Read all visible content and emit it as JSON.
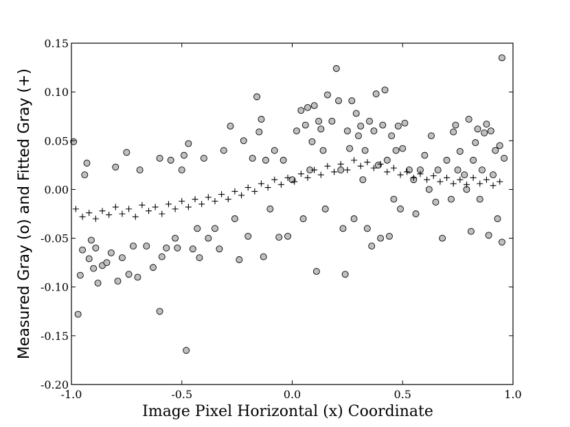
{
  "chart_data": {
    "type": "scatter",
    "title": "",
    "xlabel": "Image Pixel Horizontal (x) Coordinate",
    "ylabel": "Measured Gray (o) and Fitted Gray (+)",
    "xlim": [
      -1.0,
      1.0
    ],
    "ylim": [
      -0.2,
      0.15
    ],
    "xticks": [
      "-1.0",
      "-0.5",
      "0.0",
      "0.5",
      "1.0"
    ],
    "yticks": [
      "0.15",
      "0.10",
      "0.05",
      "0.00",
      "-0.05",
      "-0.10",
      "-0.15",
      "-0.20"
    ],
    "ytick_values": [
      0.15,
      0.1,
      0.05,
      0.0,
      -0.05,
      -0.1,
      -0.15,
      -0.2
    ],
    "xtick_values": [
      -1.0,
      -0.5,
      0.0,
      0.5,
      1.0
    ],
    "grid": false,
    "legend": "none",
    "series": [
      {
        "marker": "circle",
        "color": "#c0c0c0",
        "edge_color": "#000000",
        "points": [
          [
            -0.99,
            0.049
          ],
          [
            -0.97,
            -0.128
          ],
          [
            -0.96,
            -0.088
          ],
          [
            -0.95,
            -0.062
          ],
          [
            -0.94,
            0.015
          ],
          [
            -0.93,
            0.027
          ],
          [
            -0.92,
            -0.071
          ],
          [
            -0.91,
            -0.052
          ],
          [
            -0.9,
            -0.081
          ],
          [
            -0.89,
            -0.06
          ],
          [
            -0.88,
            -0.096
          ],
          [
            -0.86,
            -0.078
          ],
          [
            -0.84,
            -0.075
          ],
          [
            -0.82,
            -0.065
          ],
          [
            -0.8,
            0.023
          ],
          [
            -0.79,
            -0.094
          ],
          [
            -0.77,
            -0.07
          ],
          [
            -0.75,
            0.038
          ],
          [
            -0.74,
            -0.087
          ],
          [
            -0.72,
            -0.058
          ],
          [
            -0.7,
            -0.09
          ],
          [
            -0.69,
            0.02
          ],
          [
            -0.66,
            -0.058
          ],
          [
            -0.63,
            -0.08
          ],
          [
            -0.6,
            0.032
          ],
          [
            -0.6,
            -0.125
          ],
          [
            -0.59,
            -0.069
          ],
          [
            -0.57,
            -0.06
          ],
          [
            -0.55,
            0.03
          ],
          [
            -0.53,
            -0.05
          ],
          [
            -0.52,
            -0.06
          ],
          [
            -0.5,
            0.02
          ],
          [
            -0.49,
            0.035
          ],
          [
            -0.48,
            -0.165
          ],
          [
            -0.47,
            0.047
          ],
          [
            -0.45,
            -0.061
          ],
          [
            -0.43,
            -0.04
          ],
          [
            -0.42,
            -0.07
          ],
          [
            -0.4,
            0.032
          ],
          [
            -0.38,
            -0.05
          ],
          [
            -0.35,
            -0.04
          ],
          [
            -0.33,
            -0.061
          ],
          [
            -0.31,
            0.04
          ],
          [
            -0.28,
            0.065
          ],
          [
            -0.26,
            -0.03
          ],
          [
            -0.24,
            -0.072
          ],
          [
            -0.22,
            0.05
          ],
          [
            -0.2,
            -0.048
          ],
          [
            -0.18,
            0.032
          ],
          [
            -0.16,
            0.095
          ],
          [
            -0.15,
            0.059
          ],
          [
            -0.14,
            0.072
          ],
          [
            -0.13,
            -0.069
          ],
          [
            -0.12,
            0.03
          ],
          [
            -0.1,
            -0.02
          ],
          [
            -0.08,
            0.04
          ],
          [
            -0.06,
            -0.049
          ],
          [
            -0.04,
            0.03
          ],
          [
            -0.02,
            -0.048
          ],
          [
            0.0,
            0.01
          ],
          [
            0.02,
            0.06
          ],
          [
            0.04,
            0.081
          ],
          [
            0.05,
            -0.03
          ],
          [
            0.06,
            0.066
          ],
          [
            0.07,
            0.084
          ],
          [
            0.08,
            0.02
          ],
          [
            0.09,
            0.049
          ],
          [
            0.1,
            0.086
          ],
          [
            0.11,
            -0.084
          ],
          [
            0.12,
            0.07
          ],
          [
            0.13,
            0.062
          ],
          [
            0.14,
            0.04
          ],
          [
            0.15,
            -0.02
          ],
          [
            0.16,
            0.097
          ],
          [
            0.18,
            0.07
          ],
          [
            0.2,
            0.124
          ],
          [
            0.21,
            0.091
          ],
          [
            0.22,
            0.02
          ],
          [
            0.23,
            -0.04
          ],
          [
            0.24,
            -0.087
          ],
          [
            0.25,
            0.06
          ],
          [
            0.26,
            0.042
          ],
          [
            0.27,
            0.091
          ],
          [
            0.28,
            -0.03
          ],
          [
            0.29,
            0.078
          ],
          [
            0.3,
            0.055
          ],
          [
            0.31,
            0.065
          ],
          [
            0.32,
            0.01
          ],
          [
            0.33,
            0.04
          ],
          [
            0.34,
            -0.04
          ],
          [
            0.35,
            0.07
          ],
          [
            0.36,
            -0.058
          ],
          [
            0.37,
            0.06
          ],
          [
            0.38,
            0.098
          ],
          [
            0.39,
            0.025
          ],
          [
            0.4,
            -0.05
          ],
          [
            0.41,
            0.066
          ],
          [
            0.42,
            0.102
          ],
          [
            0.43,
            0.03
          ],
          [
            0.44,
            -0.048
          ],
          [
            0.45,
            0.055
          ],
          [
            0.46,
            -0.01
          ],
          [
            0.47,
            0.04
          ],
          [
            0.48,
            0.065
          ],
          [
            0.49,
            -0.02
          ],
          [
            0.5,
            0.042
          ],
          [
            0.51,
            0.068
          ],
          [
            0.53,
            0.02
          ],
          [
            0.55,
            0.01
          ],
          [
            0.56,
            -0.025
          ],
          [
            0.58,
            0.02
          ],
          [
            0.6,
            0.035
          ],
          [
            0.62,
            0.0
          ],
          [
            0.63,
            0.055
          ],
          [
            0.65,
            -0.013
          ],
          [
            0.66,
            0.02
          ],
          [
            0.68,
            -0.05
          ],
          [
            0.7,
            0.03
          ],
          [
            0.72,
            -0.01
          ],
          [
            0.73,
            0.059
          ],
          [
            0.74,
            0.066
          ],
          [
            0.75,
            0.02
          ],
          [
            0.76,
            0.039
          ],
          [
            0.78,
            0.015
          ],
          [
            0.79,
            0.0
          ],
          [
            0.8,
            0.072
          ],
          [
            0.81,
            -0.043
          ],
          [
            0.82,
            0.03
          ],
          [
            0.83,
            0.048
          ],
          [
            0.84,
            0.062
          ],
          [
            0.85,
            -0.01
          ],
          [
            0.86,
            0.02
          ],
          [
            0.87,
            0.058
          ],
          [
            0.88,
            0.067
          ],
          [
            0.89,
            -0.047
          ],
          [
            0.9,
            0.06
          ],
          [
            0.91,
            0.015
          ],
          [
            0.92,
            0.04
          ],
          [
            0.93,
            -0.03
          ],
          [
            0.94,
            0.045
          ],
          [
            0.95,
            -0.054
          ],
          [
            0.95,
            0.135
          ],
          [
            0.96,
            0.032
          ]
        ]
      },
      {
        "marker": "plus",
        "color": "#000000",
        "points": [
          [
            -0.98,
            -0.02
          ],
          [
            -0.95,
            -0.028
          ],
          [
            -0.92,
            -0.024
          ],
          [
            -0.89,
            -0.03
          ],
          [
            -0.86,
            -0.022
          ],
          [
            -0.83,
            -0.026
          ],
          [
            -0.8,
            -0.018
          ],
          [
            -0.77,
            -0.025
          ],
          [
            -0.74,
            -0.02
          ],
          [
            -0.71,
            -0.028
          ],
          [
            -0.68,
            -0.016
          ],
          [
            -0.65,
            -0.022
          ],
          [
            -0.62,
            -0.018
          ],
          [
            -0.59,
            -0.025
          ],
          [
            -0.56,
            -0.015
          ],
          [
            -0.53,
            -0.02
          ],
          [
            -0.5,
            -0.012
          ],
          [
            -0.47,
            -0.018
          ],
          [
            -0.44,
            -0.01
          ],
          [
            -0.41,
            -0.015
          ],
          [
            -0.38,
            -0.008
          ],
          [
            -0.35,
            -0.012
          ],
          [
            -0.32,
            -0.005
          ],
          [
            -0.29,
            -0.01
          ],
          [
            -0.26,
            -0.002
          ],
          [
            -0.23,
            -0.006
          ],
          [
            -0.2,
            0.002
          ],
          [
            -0.17,
            -0.002
          ],
          [
            -0.14,
            0.006
          ],
          [
            -0.11,
            0.002
          ],
          [
            -0.08,
            0.01
          ],
          [
            -0.05,
            0.005
          ],
          [
            -0.02,
            0.012
          ],
          [
            0.01,
            0.008
          ],
          [
            0.04,
            0.016
          ],
          [
            0.07,
            0.012
          ],
          [
            0.1,
            0.02
          ],
          [
            0.13,
            0.015
          ],
          [
            0.16,
            0.024
          ],
          [
            0.19,
            0.018
          ],
          [
            0.22,
            0.026
          ],
          [
            0.25,
            0.02
          ],
          [
            0.28,
            0.03
          ],
          [
            0.31,
            0.024
          ],
          [
            0.34,
            0.028
          ],
          [
            0.37,
            0.022
          ],
          [
            0.4,
            0.026
          ],
          [
            0.43,
            0.018
          ],
          [
            0.46,
            0.022
          ],
          [
            0.49,
            0.015
          ],
          [
            0.52,
            0.018
          ],
          [
            0.55,
            0.012
          ],
          [
            0.58,
            0.016
          ],
          [
            0.61,
            0.01
          ],
          [
            0.64,
            0.014
          ],
          [
            0.67,
            0.008
          ],
          [
            0.7,
            0.012
          ],
          [
            0.73,
            0.006
          ],
          [
            0.76,
            0.01
          ],
          [
            0.79,
            0.005
          ],
          [
            0.82,
            0.012
          ],
          [
            0.85,
            0.006
          ],
          [
            0.88,
            0.01
          ],
          [
            0.91,
            0.004
          ],
          [
            0.94,
            0.008
          ]
        ]
      }
    ]
  }
}
